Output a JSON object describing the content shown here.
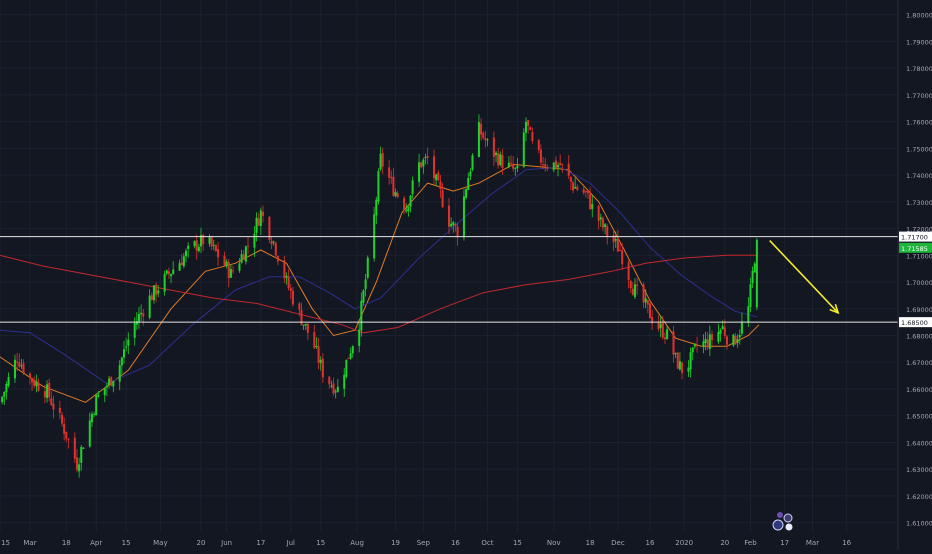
{
  "theme": {
    "background": "#131722",
    "grid": "#1c2130",
    "axis_text": "#a3a6af",
    "bull": "#26a69a",
    "bull_bright": "#1fd12a",
    "bear": "#e0322c",
    "ma_fast": "#e07a22",
    "ma_mid": "#2b2f8f",
    "ma_slow": "#c0292b",
    "level_line": "#e6e6e6",
    "arrow": "#f2ea2a",
    "last_price_badge": "#1fb53b"
  },
  "chart_data": {
    "type": "candlestick",
    "title": "",
    "xlabel": "",
    "ylabel": "",
    "ylim": [
      1.6065,
      1.8055
    ],
    "grid": true,
    "y_ticks": [
      "1.80000",
      "1.79000",
      "1.78000",
      "1.77000",
      "1.76000",
      "1.75000",
      "1.74000",
      "1.73000",
      "1.72000",
      "1.71000",
      "1.70000",
      "1.69000",
      "1.68000",
      "1.67000",
      "1.66000",
      "1.65000",
      "1.64000",
      "1.63000",
      "1.62000",
      "1.61000"
    ],
    "y_tick_values": [
      1.8,
      1.79,
      1.78,
      1.77,
      1.76,
      1.75,
      1.74,
      1.73,
      1.72,
      1.71,
      1.7,
      1.69,
      1.68,
      1.67,
      1.66,
      1.65,
      1.64,
      1.63,
      1.62,
      1.61
    ],
    "x_ticks": [
      {
        "label": "15",
        "day": 0
      },
      {
        "label": "Mar",
        "day": 14
      },
      {
        "label": "18",
        "day": 31
      },
      {
        "label": "Apr",
        "day": 45
      },
      {
        "label": "15",
        "day": 59
      },
      {
        "label": "May",
        "day": 75
      },
      {
        "label": "20",
        "day": 94
      },
      {
        "label": "Jun",
        "day": 106
      },
      {
        "label": "17",
        "day": 122
      },
      {
        "label": "Jul",
        "day": 136
      },
      {
        "label": "15",
        "day": 150
      },
      {
        "label": "Aug",
        "day": 167
      },
      {
        "label": "19",
        "day": 185
      },
      {
        "label": "Sep",
        "day": 198
      },
      {
        "label": "16",
        "day": 213
      },
      {
        "label": "Oct",
        "day": 228
      },
      {
        "label": "15",
        "day": 242
      },
      {
        "label": "Nov",
        "day": 259
      },
      {
        "label": "18",
        "day": 276
      },
      {
        "label": "Dec",
        "day": 289
      },
      {
        "label": "16",
        "day": 304
      },
      {
        "label": "2020",
        "day": 320
      },
      {
        "label": "20",
        "day": 339
      },
      {
        "label": "Feb",
        "day": 351
      },
      {
        "label": "17",
        "day": 367
      },
      {
        "label": "Mar",
        "day": 380
      },
      {
        "label": "16",
        "day": 396
      }
    ],
    "x_day_range": [
      0,
      420
    ],
    "price_path": [
      [
        0,
        1.655
      ],
      [
        8,
        1.672
      ],
      [
        14,
        1.664
      ],
      [
        22,
        1.659
      ],
      [
        30,
        1.645
      ],
      [
        36,
        1.632
      ],
      [
        45,
        1.656
      ],
      [
        55,
        1.667
      ],
      [
        62,
        1.683
      ],
      [
        70,
        1.694
      ],
      [
        80,
        1.704
      ],
      [
        90,
        1.713
      ],
      [
        96,
        1.716
      ],
      [
        102,
        1.71
      ],
      [
        108,
        1.703
      ],
      [
        116,
        1.714
      ],
      [
        122,
        1.726
      ],
      [
        128,
        1.715
      ],
      [
        134,
        1.7
      ],
      [
        140,
        1.688
      ],
      [
        146,
        1.678
      ],
      [
        152,
        1.664
      ],
      [
        158,
        1.66
      ],
      [
        162,
        1.67
      ],
      [
        168,
        1.685
      ],
      [
        174,
        1.717
      ],
      [
        178,
        1.746
      ],
      [
        184,
        1.735
      ],
      [
        190,
        1.728
      ],
      [
        196,
        1.744
      ],
      [
        200,
        1.746
      ],
      [
        206,
        1.733
      ],
      [
        210,
        1.723
      ],
      [
        214,
        1.719
      ],
      [
        218,
        1.736
      ],
      [
        224,
        1.757
      ],
      [
        230,
        1.749
      ],
      [
        236,
        1.744
      ],
      [
        242,
        1.741
      ],
      [
        246,
        1.76
      ],
      [
        250,
        1.748
      ],
      [
        256,
        1.744
      ],
      [
        262,
        1.744
      ],
      [
        268,
        1.736
      ],
      [
        274,
        1.733
      ],
      [
        278,
        1.726
      ],
      [
        284,
        1.718
      ],
      [
        290,
        1.712
      ],
      [
        296,
        1.698
      ],
      [
        302,
        1.691
      ],
      [
        306,
        1.685
      ],
      [
        312,
        1.68
      ],
      [
        316,
        1.671
      ],
      [
        320,
        1.666
      ],
      [
        326,
        1.676
      ],
      [
        332,
        1.678
      ],
      [
        338,
        1.683
      ],
      [
        342,
        1.676
      ],
      [
        346,
        1.682
      ],
      [
        350,
        1.69
      ],
      [
        354,
        1.716
      ]
    ],
    "last_candle": {
      "open": 1.6905,
      "high": 1.7165,
      "low": 1.6895,
      "close": 1.7158
    },
    "moving_averages": [
      {
        "key": "ma_fast",
        "points": [
          [
            0,
            1.672
          ],
          [
            20,
            1.661
          ],
          [
            40,
            1.655
          ],
          [
            60,
            1.667
          ],
          [
            80,
            1.69
          ],
          [
            96,
            1.704
          ],
          [
            110,
            1.707
          ],
          [
            122,
            1.712
          ],
          [
            134,
            1.707
          ],
          [
            146,
            1.69
          ],
          [
            156,
            1.68
          ],
          [
            166,
            1.682
          ],
          [
            176,
            1.7
          ],
          [
            188,
            1.726
          ],
          [
            200,
            1.737
          ],
          [
            212,
            1.734
          ],
          [
            224,
            1.737
          ],
          [
            240,
            1.744
          ],
          [
            254,
            1.743
          ],
          [
            266,
            1.742
          ],
          [
            280,
            1.73
          ],
          [
            292,
            1.712
          ],
          [
            304,
            1.693
          ],
          [
            316,
            1.679
          ],
          [
            328,
            1.676
          ],
          [
            340,
            1.676
          ],
          [
            350,
            1.68
          ],
          [
            355,
            1.684
          ]
        ]
      },
      {
        "key": "ma_mid",
        "points": [
          [
            0,
            1.682
          ],
          [
            14,
            1.681
          ],
          [
            30,
            1.673
          ],
          [
            50,
            1.662
          ],
          [
            70,
            1.669
          ],
          [
            90,
            1.684
          ],
          [
            110,
            1.697
          ],
          [
            126,
            1.702
          ],
          [
            140,
            1.702
          ],
          [
            154,
            1.696
          ],
          [
            166,
            1.69
          ],
          [
            178,
            1.694
          ],
          [
            196,
            1.709
          ],
          [
            214,
            1.722
          ],
          [
            230,
            1.733
          ],
          [
            246,
            1.742
          ],
          [
            262,
            1.743
          ],
          [
            276,
            1.737
          ],
          [
            290,
            1.726
          ],
          [
            304,
            1.713
          ],
          [
            318,
            1.703
          ],
          [
            332,
            1.695
          ],
          [
            344,
            1.689
          ],
          [
            354,
            1.687
          ]
        ]
      },
      {
        "key": "ma_slow",
        "points": [
          [
            0,
            1.71
          ],
          [
            20,
            1.706
          ],
          [
            40,
            1.703
          ],
          [
            60,
            1.7
          ],
          [
            80,
            1.697
          ],
          [
            100,
            1.694
          ],
          [
            120,
            1.692
          ],
          [
            140,
            1.688
          ],
          [
            160,
            1.684
          ],
          [
            170,
            1.681
          ],
          [
            186,
            1.683
          ],
          [
            206,
            1.69
          ],
          [
            226,
            1.696
          ],
          [
            246,
            1.699
          ],
          [
            266,
            1.701
          ],
          [
            286,
            1.704
          ],
          [
            302,
            1.707
          ],
          [
            320,
            1.709
          ],
          [
            340,
            1.71
          ],
          [
            354,
            1.71
          ]
        ]
      }
    ],
    "horizontal_levels": [
      {
        "price": 1.717,
        "label": "1.71700"
      },
      {
        "price": 1.685,
        "label": "1.68500"
      }
    ],
    "last_price": {
      "price": 1.7158,
      "label": "1.71585"
    },
    "arrow": {
      "from": [
        360,
        1.7155
      ],
      "to": [
        392,
        1.6885
      ]
    }
  }
}
